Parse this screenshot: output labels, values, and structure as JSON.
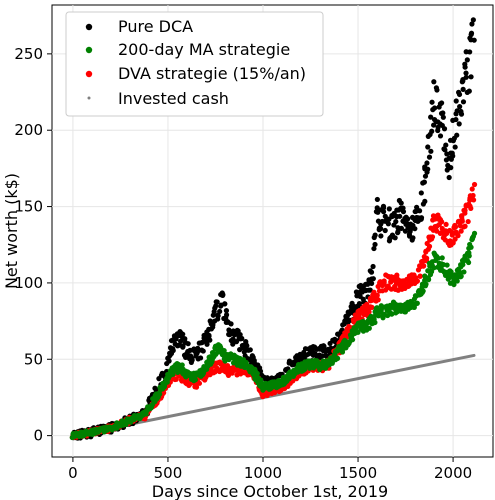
{
  "chart_data": {
    "type": "scatter",
    "xlabel": "Days since October 1st, 2019",
    "ylabel": "Net worth (k$)",
    "xlim": [
      -110,
      2210
    ],
    "ylim": [
      -14,
      282
    ],
    "x_ticks": [
      0,
      500,
      1000,
      1500,
      2000
    ],
    "y_ticks": [
      0,
      50,
      100,
      150,
      200,
      250
    ],
    "grid": true,
    "legend_position": "top-left",
    "series": [
      {
        "name": "Pure DCA",
        "color": "#000000",
        "marker": "dot",
        "points": [
          [
            0,
            0
          ],
          [
            100,
            2
          ],
          [
            200,
            5
          ],
          [
            300,
            10
          ],
          [
            380,
            14
          ],
          [
            420,
            25
          ],
          [
            480,
            38
          ],
          [
            520,
            57
          ],
          [
            560,
            64
          ],
          [
            600,
            55
          ],
          [
            650,
            52
          ],
          [
            700,
            62
          ],
          [
            750,
            80
          ],
          [
            780,
            90
          ],
          [
            820,
            68
          ],
          [
            870,
            63
          ],
          [
            920,
            55
          ],
          [
            960,
            45
          ],
          [
            1000,
            35
          ],
          [
            1050,
            34
          ],
          [
            1100,
            37
          ],
          [
            1150,
            45
          ],
          [
            1200,
            50
          ],
          [
            1250,
            54
          ],
          [
            1300,
            53
          ],
          [
            1350,
            55
          ],
          [
            1400,
            62
          ],
          [
            1450,
            75
          ],
          [
            1500,
            90
          ],
          [
            1550,
            92
          ],
          [
            1580,
            110
          ],
          [
            1600,
            145
          ],
          [
            1630,
            140
          ],
          [
            1680,
            137
          ],
          [
            1730,
            145
          ],
          [
            1780,
            130
          ],
          [
            1830,
            150
          ],
          [
            1860,
            175
          ],
          [
            1900,
            220
          ],
          [
            1950,
            200
          ],
          [
            1980,
            180
          ],
          [
            2010,
            205
          ],
          [
            2050,
            225
          ],
          [
            2080,
            240
          ],
          [
            2110,
            265
          ]
        ]
      },
      {
        "name": "200-day MA strategie",
        "color": "#008000",
        "marker": "dot",
        "points": [
          [
            0,
            0
          ],
          [
            100,
            2
          ],
          [
            200,
            5
          ],
          [
            300,
            10
          ],
          [
            380,
            14
          ],
          [
            420,
            22
          ],
          [
            480,
            33
          ],
          [
            520,
            42
          ],
          [
            560,
            45
          ],
          [
            600,
            40
          ],
          [
            650,
            38
          ],
          [
            700,
            45
          ],
          [
            760,
            57
          ],
          [
            800,
            52
          ],
          [
            850,
            50
          ],
          [
            900,
            47
          ],
          [
            960,
            40
          ],
          [
            1000,
            32
          ],
          [
            1050,
            33
          ],
          [
            1100,
            35
          ],
          [
            1150,
            40
          ],
          [
            1200,
            45
          ],
          [
            1250,
            47
          ],
          [
            1300,
            46
          ],
          [
            1350,
            47
          ],
          [
            1400,
            55
          ],
          [
            1450,
            62
          ],
          [
            1500,
            70
          ],
          [
            1550,
            72
          ],
          [
            1600,
            80
          ],
          [
            1650,
            82
          ],
          [
            1700,
            84
          ],
          [
            1750,
            82
          ],
          [
            1800,
            88
          ],
          [
            1850,
            100
          ],
          [
            1900,
            115
          ],
          [
            1950,
            112
          ],
          [
            1980,
            105
          ],
          [
            2010,
            102
          ],
          [
            2050,
            110
          ],
          [
            2080,
            118
          ],
          [
            2110,
            128
          ]
        ]
      },
      {
        "name": "DVA strategie (15%/an)",
        "color": "#ff0000",
        "marker": "dot",
        "points": [
          [
            0,
            0
          ],
          [
            100,
            2
          ],
          [
            200,
            5
          ],
          [
            300,
            10
          ],
          [
            380,
            13
          ],
          [
            420,
            20
          ],
          [
            480,
            30
          ],
          [
            520,
            38
          ],
          [
            560,
            40
          ],
          [
            600,
            36
          ],
          [
            650,
            34
          ],
          [
            700,
            40
          ],
          [
            760,
            46
          ],
          [
            800,
            43
          ],
          [
            850,
            42
          ],
          [
            900,
            44
          ],
          [
            960,
            38
          ],
          [
            1000,
            28
          ],
          [
            1050,
            30
          ],
          [
            1100,
            32
          ],
          [
            1150,
            37
          ],
          [
            1200,
            42
          ],
          [
            1250,
            46
          ],
          [
            1300,
            45
          ],
          [
            1350,
            47
          ],
          [
            1400,
            57
          ],
          [
            1450,
            68
          ],
          [
            1500,
            77
          ],
          [
            1550,
            82
          ],
          [
            1600,
            93
          ],
          [
            1650,
            101
          ],
          [
            1700,
            100
          ],
          [
            1750,
            98
          ],
          [
            1800,
            102
          ],
          [
            1850,
            115
          ],
          [
            1900,
            140
          ],
          [
            1950,
            136
          ],
          [
            1980,
            130
          ],
          [
            2010,
            133
          ],
          [
            2050,
            140
          ],
          [
            2080,
            148
          ],
          [
            2110,
            160
          ]
        ]
      },
      {
        "name": "Invested cash",
        "color": "#808080",
        "marker": "dot",
        "points": [
          [
            0,
            0
          ],
          [
            2110,
            52.5
          ]
        ]
      }
    ]
  }
}
